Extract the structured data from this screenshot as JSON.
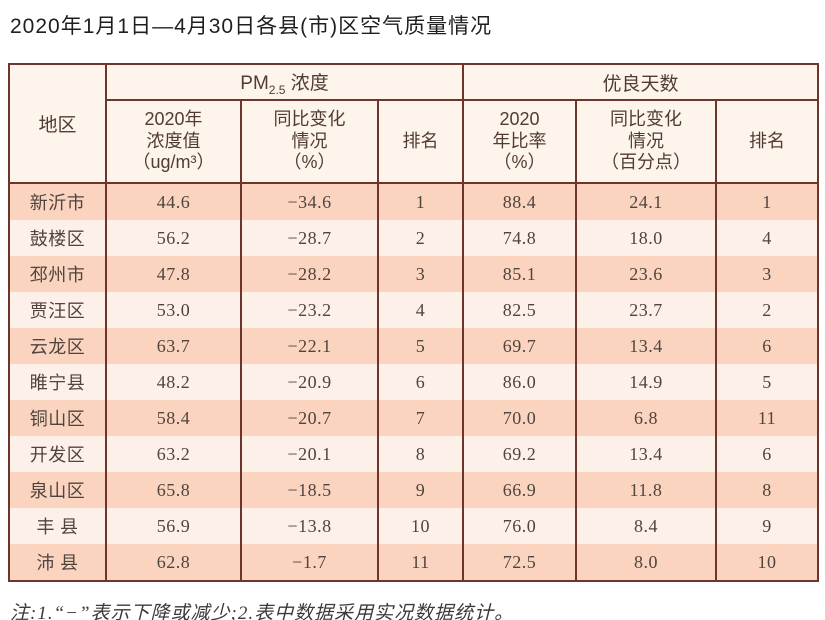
{
  "title": "2020年1月1日—4月30日各县(市)区空气质量情况",
  "note": "注:1.“−”表示下降或减少;2.表中数据采用实况数据统计。",
  "colors": {
    "border": "#6d362c",
    "row_salmon": "#fbd4c0",
    "row_light": "#fdf0e9",
    "header_bg": "#fdf4ec",
    "header_text": "#513c32",
    "data_text": "#4e453e"
  },
  "table": {
    "region_header": "地区",
    "pm_group": {
      "prefix": "PM",
      "sub": "2.5",
      "suffix": " 浓度"
    },
    "good_days_group": "优良天数",
    "sub_headers": [
      "2020年\n浓度值\n（ug/m³）",
      "同比变化\n情况\n（%）",
      "排名",
      "2020\n年比率\n（%）",
      "同比变化\n情况\n（百分点）",
      "排名"
    ]
  },
  "chart_data": {
    "type": "table",
    "title": "2020年1月1日—4月30日各县(市)区空气质量情况",
    "column_groups": [
      "地区",
      "PM2.5浓度",
      "优良天数"
    ],
    "columns": [
      "地区",
      "PM2.5浓度 2020年浓度值（ug/m³）",
      "PM2.5浓度 同比变化情况（%）",
      "PM2.5浓度 排名",
      "优良天数 2020年比率（%）",
      "优良天数 同比变化情况（百分点）",
      "优良天数 排名"
    ],
    "rows": [
      [
        "新沂市",
        "44.6",
        "−34.6",
        "1",
        "88.4",
        "24.1",
        "1"
      ],
      [
        "鼓楼区",
        "56.2",
        "−28.7",
        "2",
        "74.8",
        "18.0",
        "4"
      ],
      [
        "邳州市",
        "47.8",
        "−28.2",
        "3",
        "85.1",
        "23.6",
        "3"
      ],
      [
        "贾汪区",
        "53.0",
        "−23.2",
        "4",
        "82.5",
        "23.7",
        "2"
      ],
      [
        "云龙区",
        "63.7",
        "−22.1",
        "5",
        "69.7",
        "13.4",
        "6"
      ],
      [
        "睢宁县",
        "48.2",
        "−20.9",
        "6",
        "86.0",
        "14.9",
        "5"
      ],
      [
        "铜山区",
        "58.4",
        "−20.7",
        "7",
        "70.0",
        "6.8",
        "11"
      ],
      [
        "开发区",
        "63.2",
        "−20.1",
        "8",
        "69.2",
        "13.4",
        "6"
      ],
      [
        "泉山区",
        "65.8",
        "−18.5",
        "9",
        "66.9",
        "11.8",
        "8"
      ],
      [
        "丰 县",
        "56.9",
        "−13.8",
        "10",
        "76.0",
        "8.4",
        "9"
      ],
      [
        "沛 县",
        "62.8",
        "−1.7",
        "11",
        "72.5",
        "8.0",
        "10"
      ]
    ]
  }
}
